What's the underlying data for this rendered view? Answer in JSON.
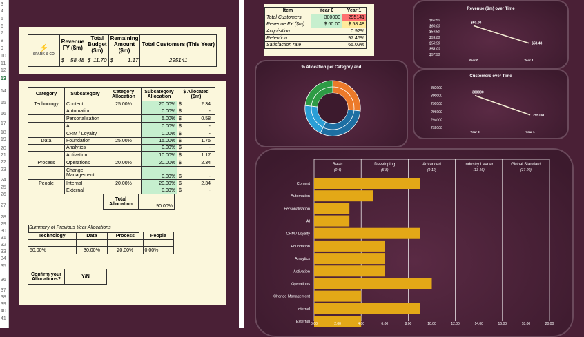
{
  "row_numbers": [
    "3",
    "4",
    "5",
    "6",
    "7",
    "8",
    "9",
    "10",
    "11",
    "12",
    "13",
    "14",
    "15",
    "16",
    "17",
    "18",
    "19",
    "20",
    "21",
    "22",
    "23",
    "24",
    "25",
    "26",
    "27",
    "28",
    "29",
    "30",
    "31",
    "32",
    "33",
    "34",
    "35",
    "36",
    "37",
    "38",
    "39",
    "40",
    "41"
  ],
  "summary": {
    "logo_text": "SPARK & CO",
    "headers": [
      "Revenue FY ($m)",
      "Total Budget ($m)",
      "Remaining Amount ($m)",
      "Total Customers (This Year)"
    ],
    "values": [
      "58.48",
      "11.70",
      "1.17",
      "295141"
    ],
    "currency": "$"
  },
  "alloc": {
    "headers": [
      "Category",
      "Subcategory",
      "Category Allocation",
      "Subcategory Allocation",
      "$ Allocated ($m)"
    ],
    "rows": [
      {
        "cat": "Technology",
        "sub": "Content",
        "catAlloc": "25.00%",
        "subAlloc": "20.00%",
        "amt": "2.34"
      },
      {
        "cat": "",
        "sub": "Automation",
        "catAlloc": "",
        "subAlloc": "0.00%",
        "amt": "-"
      },
      {
        "cat": "",
        "sub": "Personalisation",
        "catAlloc": "",
        "subAlloc": "5.00%",
        "amt": "0.58"
      },
      {
        "cat": "",
        "sub": "AI",
        "catAlloc": "",
        "subAlloc": "0.00%",
        "amt": "-"
      },
      {
        "cat": "",
        "sub": "CRM / Loyalty",
        "catAlloc": "",
        "subAlloc": "0.00%",
        "amt": "-"
      },
      {
        "cat": "Data",
        "sub": "Foundation",
        "catAlloc": "25.00%",
        "subAlloc": "15.00%",
        "amt": "1.75"
      },
      {
        "cat": "",
        "sub": "Analytics",
        "catAlloc": "",
        "subAlloc": "0.00%",
        "amt": "-"
      },
      {
        "cat": "",
        "sub": "Activation",
        "catAlloc": "",
        "subAlloc": "10.00%",
        "amt": "1.17"
      },
      {
        "cat": "Process",
        "sub": "Operations",
        "catAlloc": "20.00%",
        "subAlloc": "20.00%",
        "amt": "2.34"
      },
      {
        "cat": "",
        "sub": "Change Management",
        "catAlloc": "",
        "subAlloc": "0.00%",
        "amt": "-"
      },
      {
        "cat": "People",
        "sub": "Internal",
        "catAlloc": "20.00%",
        "subAlloc": "20.00%",
        "amt": "2.34"
      },
      {
        "cat": "",
        "sub": "External",
        "catAlloc": "",
        "subAlloc": "0.00%",
        "amt": "-"
      }
    ],
    "total_label": "Total Allocation",
    "total_value": "90.00%"
  },
  "prev_year": {
    "title": "Summary of Previous Year Allocations",
    "headers": [
      "Technology",
      "Data",
      "Process",
      "People"
    ],
    "values": [
      "50.00%",
      "30.00%",
      "20.00%",
      "0.00%"
    ]
  },
  "confirm": {
    "label": "Confirm your Allocations?",
    "value": "Y/N"
  },
  "kpi": {
    "headers": [
      "Item",
      "Year 0",
      "Year 1"
    ],
    "rows": [
      {
        "item": "Total Customers",
        "y0": "300000",
        "y1": "295141"
      },
      {
        "item": "Revenue FY ($m)",
        "y0": "$ 60.00",
        "y1": "$ 58.48"
      },
      {
        "item": "Acquisition",
        "y0": "",
        "y1": "0.92%"
      },
      {
        "item": "Retention",
        "y0": "",
        "y1": "97.46%"
      },
      {
        "item": "Satisfaction rate",
        "y0": "",
        "y1": "65.02%"
      }
    ]
  },
  "donut_title": "% Allocation per Category and",
  "chart_data": [
    {
      "type": "line",
      "title": "Revenue ($m) over Time",
      "categories": [
        "Year 0",
        "Year 1"
      ],
      "values": [
        60.0,
        58.48
      ],
      "data_labels": [
        "$60.00",
        "$58.48"
      ],
      "y_ticks": [
        "$60.50",
        "$60.00",
        "$59.50",
        "$59.00",
        "$58.50",
        "$58.00",
        "$57.50"
      ],
      "ylim": [
        57.5,
        60.5
      ]
    },
    {
      "type": "line",
      "title": "Customers over Time",
      "categories": [
        "Year 0",
        "Year 1"
      ],
      "values": [
        300000,
        295141
      ],
      "data_labels": [
        "300000",
        "295141"
      ],
      "y_ticks": [
        "302000",
        "300000",
        "298000",
        "296000",
        "294000",
        "292000"
      ],
      "ylim": [
        292000,
        302000
      ]
    },
    {
      "type": "bar",
      "orientation": "horizontal",
      "categories": [
        "Content",
        "Automation",
        "Personalisation",
        "AI",
        "CRM / Loyalty",
        "Foundation",
        "Analytics",
        "Activation",
        "Operations",
        "Change Management",
        "Internal",
        "External"
      ],
      "values": [
        9,
        5,
        3,
        3,
        9,
        6,
        6,
        6,
        10,
        4,
        9,
        4
      ],
      "bands": [
        {
          "label": "Basic",
          "range": "(0-4)"
        },
        {
          "label": "Developing",
          "range": "(5-8)"
        },
        {
          "label": "Advanced",
          "range": "(9-12)"
        },
        {
          "label": "Industry Leader",
          "range": "(13-16)"
        },
        {
          "label": "Global Standard",
          "range": "(17-20)"
        }
      ],
      "x_ticks": [
        "0.00",
        "2.00",
        "4.00",
        "6.00",
        "8.00",
        "10.00",
        "12.00",
        "14.00",
        "16.00",
        "18.00",
        "20.00"
      ],
      "xlim": [
        0,
        20
      ],
      "bar_color": "#e3a817"
    }
  ]
}
